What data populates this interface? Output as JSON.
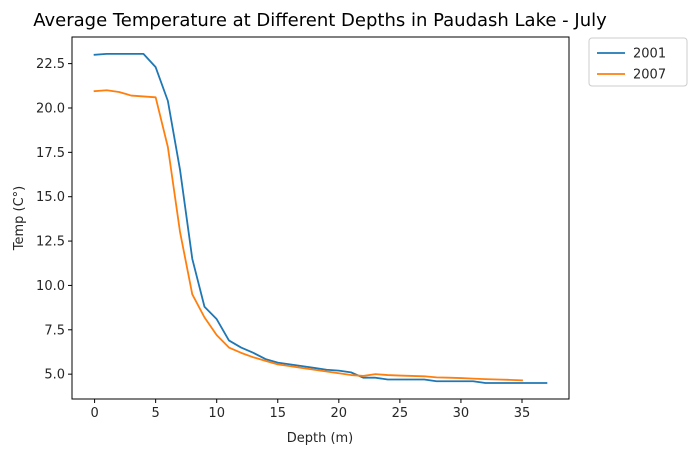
{
  "chart_data": {
    "type": "line",
    "title": "Average Temperature at Different Depths in Paudash Lake - July",
    "xlabel": "Depth (m)",
    "ylabel": "Temp (C°)",
    "xlim": [
      -1.85,
      38.85
    ],
    "ylim": [
      3.6,
      24.0
    ],
    "xticks": [
      0,
      5,
      10,
      15,
      20,
      25,
      30,
      35
    ],
    "xtick_labels": [
      "0",
      "5",
      "10",
      "15",
      "20",
      "25",
      "30",
      "35"
    ],
    "yticks": [
      5.0,
      7.5,
      10.0,
      12.5,
      15.0,
      17.5,
      20.0,
      22.5
    ],
    "ytick_labels": [
      "5.0",
      "7.5",
      "10.0",
      "12.5",
      "15.0",
      "17.5",
      "20.0",
      "22.5"
    ],
    "grid": false,
    "legend_position": "outside-top-right",
    "series": [
      {
        "name": "2001",
        "color": "#1f77b4",
        "x": [
          0,
          1,
          2,
          3,
          4,
          5,
          6,
          7,
          8,
          9,
          10,
          11,
          12,
          13,
          14,
          15,
          16,
          17,
          18,
          19,
          20,
          21,
          22,
          23,
          24,
          25,
          26,
          27,
          28,
          29,
          30,
          31,
          32,
          33,
          34,
          35,
          36,
          37
        ],
        "y": [
          23.0,
          23.05,
          23.05,
          23.05,
          23.05,
          22.3,
          20.4,
          16.5,
          11.5,
          8.8,
          8.1,
          6.9,
          6.5,
          6.2,
          5.85,
          5.65,
          5.55,
          5.45,
          5.35,
          5.25,
          5.2,
          5.1,
          4.8,
          4.8,
          4.7,
          4.7,
          4.7,
          4.7,
          4.6,
          4.6,
          4.6,
          4.6,
          4.5,
          4.5,
          4.5,
          4.5,
          4.5,
          4.5
        ]
      },
      {
        "name": "2007",
        "color": "#ff7f0e",
        "x": [
          0,
          1,
          2,
          3,
          4,
          5,
          6,
          7,
          8,
          9,
          10,
          11,
          12,
          13,
          14,
          15,
          16,
          17,
          18,
          19,
          20,
          21,
          22,
          23,
          24,
          25,
          26,
          27,
          28,
          29,
          30,
          31,
          32,
          33,
          34,
          35
        ],
        "y": [
          20.95,
          21.0,
          20.9,
          20.7,
          20.65,
          20.6,
          17.8,
          13.0,
          9.5,
          8.2,
          7.2,
          6.5,
          6.2,
          5.95,
          5.75,
          5.55,
          5.45,
          5.35,
          5.25,
          5.15,
          5.05,
          4.95,
          4.9,
          5.0,
          4.95,
          4.92,
          4.9,
          4.88,
          4.82,
          4.8,
          4.78,
          4.75,
          4.72,
          4.7,
          4.68,
          4.65
        ]
      }
    ]
  }
}
